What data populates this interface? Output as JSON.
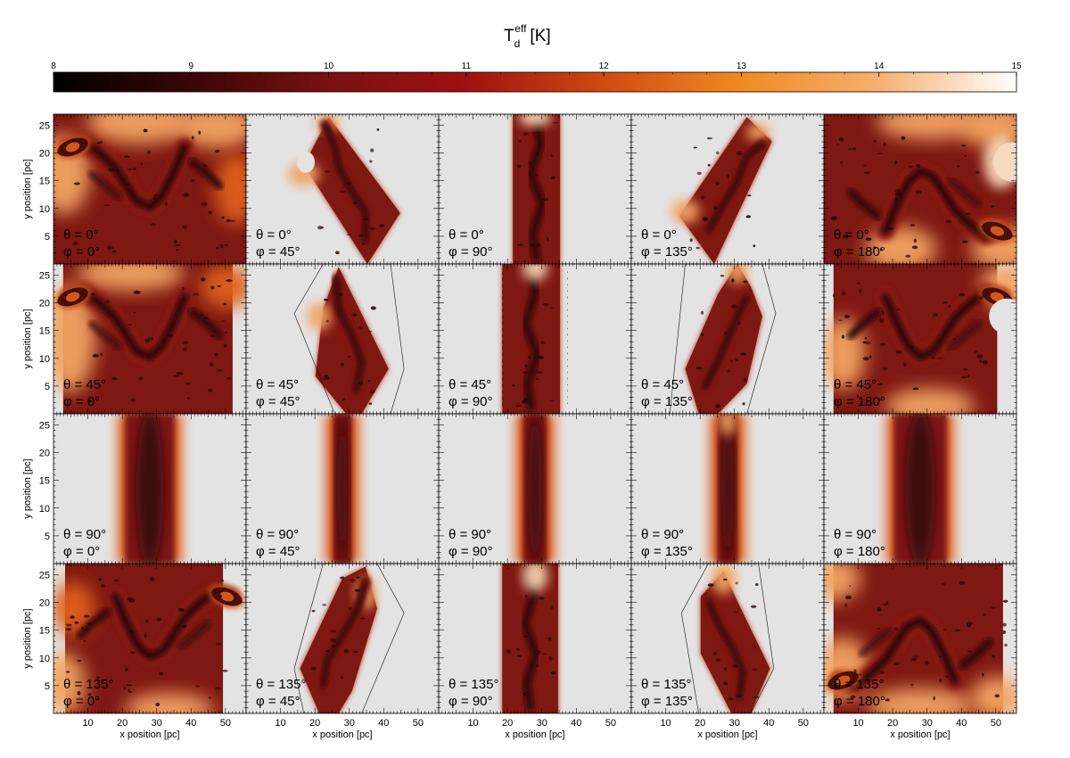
{
  "chart_data": {
    "type": "heatmap",
    "title": "T",
    "title_sub": "d",
    "title_sup": "eff",
    "title_unit": "[K]",
    "colorbar": {
      "min": 8,
      "max": 15,
      "ticks": [
        8,
        9,
        10,
        11,
        12,
        13,
        14,
        15
      ],
      "colormap": [
        "#000000",
        "#3a0606",
        "#7a1010",
        "#a01010",
        "#d04a10",
        "#f08a20",
        "#f7b070",
        "#ffffff"
      ]
    },
    "xlabel": "x position [pc]",
    "ylabel": "y position [pc]",
    "xlim": [
      0,
      56
    ],
    "ylim": [
      0,
      27
    ],
    "xticks": [
      10,
      20,
      30,
      40,
      50
    ],
    "yticks": [
      5,
      10,
      15,
      20,
      25
    ],
    "background_color": "#e3e3e3",
    "panels": [
      {
        "row": 0,
        "col": 0,
        "theta": "θ =   0°",
        "phi": "φ =   0°"
      },
      {
        "row": 0,
        "col": 1,
        "theta": "θ =   0°",
        "phi": "φ =  45°"
      },
      {
        "row": 0,
        "col": 2,
        "theta": "θ =   0°",
        "phi": "φ =  90°"
      },
      {
        "row": 0,
        "col": 3,
        "theta": "θ =   0°",
        "phi": "φ = 135°"
      },
      {
        "row": 0,
        "col": 4,
        "theta": "θ =   0°",
        "phi": "φ = 180°"
      },
      {
        "row": 1,
        "col": 0,
        "theta": "θ =  45°",
        "phi": "φ =   0°"
      },
      {
        "row": 1,
        "col": 1,
        "theta": "θ =  45°",
        "phi": "φ =  45°"
      },
      {
        "row": 1,
        "col": 2,
        "theta": "θ =  45°",
        "phi": "φ =  90°"
      },
      {
        "row": 1,
        "col": 3,
        "theta": "θ =  45°",
        "phi": "φ = 135°"
      },
      {
        "row": 1,
        "col": 4,
        "theta": "θ =  45°",
        "phi": "φ = 180°"
      },
      {
        "row": 2,
        "col": 0,
        "theta": "θ =  90°",
        "phi": "φ =   0°"
      },
      {
        "row": 2,
        "col": 1,
        "theta": "θ =  90°",
        "phi": "φ =  45°"
      },
      {
        "row": 2,
        "col": 2,
        "theta": "θ =  90°",
        "phi": "φ =  90°"
      },
      {
        "row": 2,
        "col": 3,
        "theta": "θ =  90°",
        "phi": "φ = 135°"
      },
      {
        "row": 2,
        "col": 4,
        "theta": "θ =  90°",
        "phi": "φ = 180°"
      },
      {
        "row": 3,
        "col": 0,
        "theta": "θ = 135°",
        "phi": "φ =   0°"
      },
      {
        "row": 3,
        "col": 1,
        "theta": "θ = 135°",
        "phi": "φ =  45°"
      },
      {
        "row": 3,
        "col": 2,
        "theta": "θ = 135°",
        "phi": "φ =  90°"
      },
      {
        "row": 3,
        "col": 3,
        "theta": "θ = 135°",
        "phi": "φ = 135°"
      },
      {
        "row": 3,
        "col": 4,
        "theta": "θ = 135°",
        "phi": "φ = 180°"
      }
    ]
  }
}
